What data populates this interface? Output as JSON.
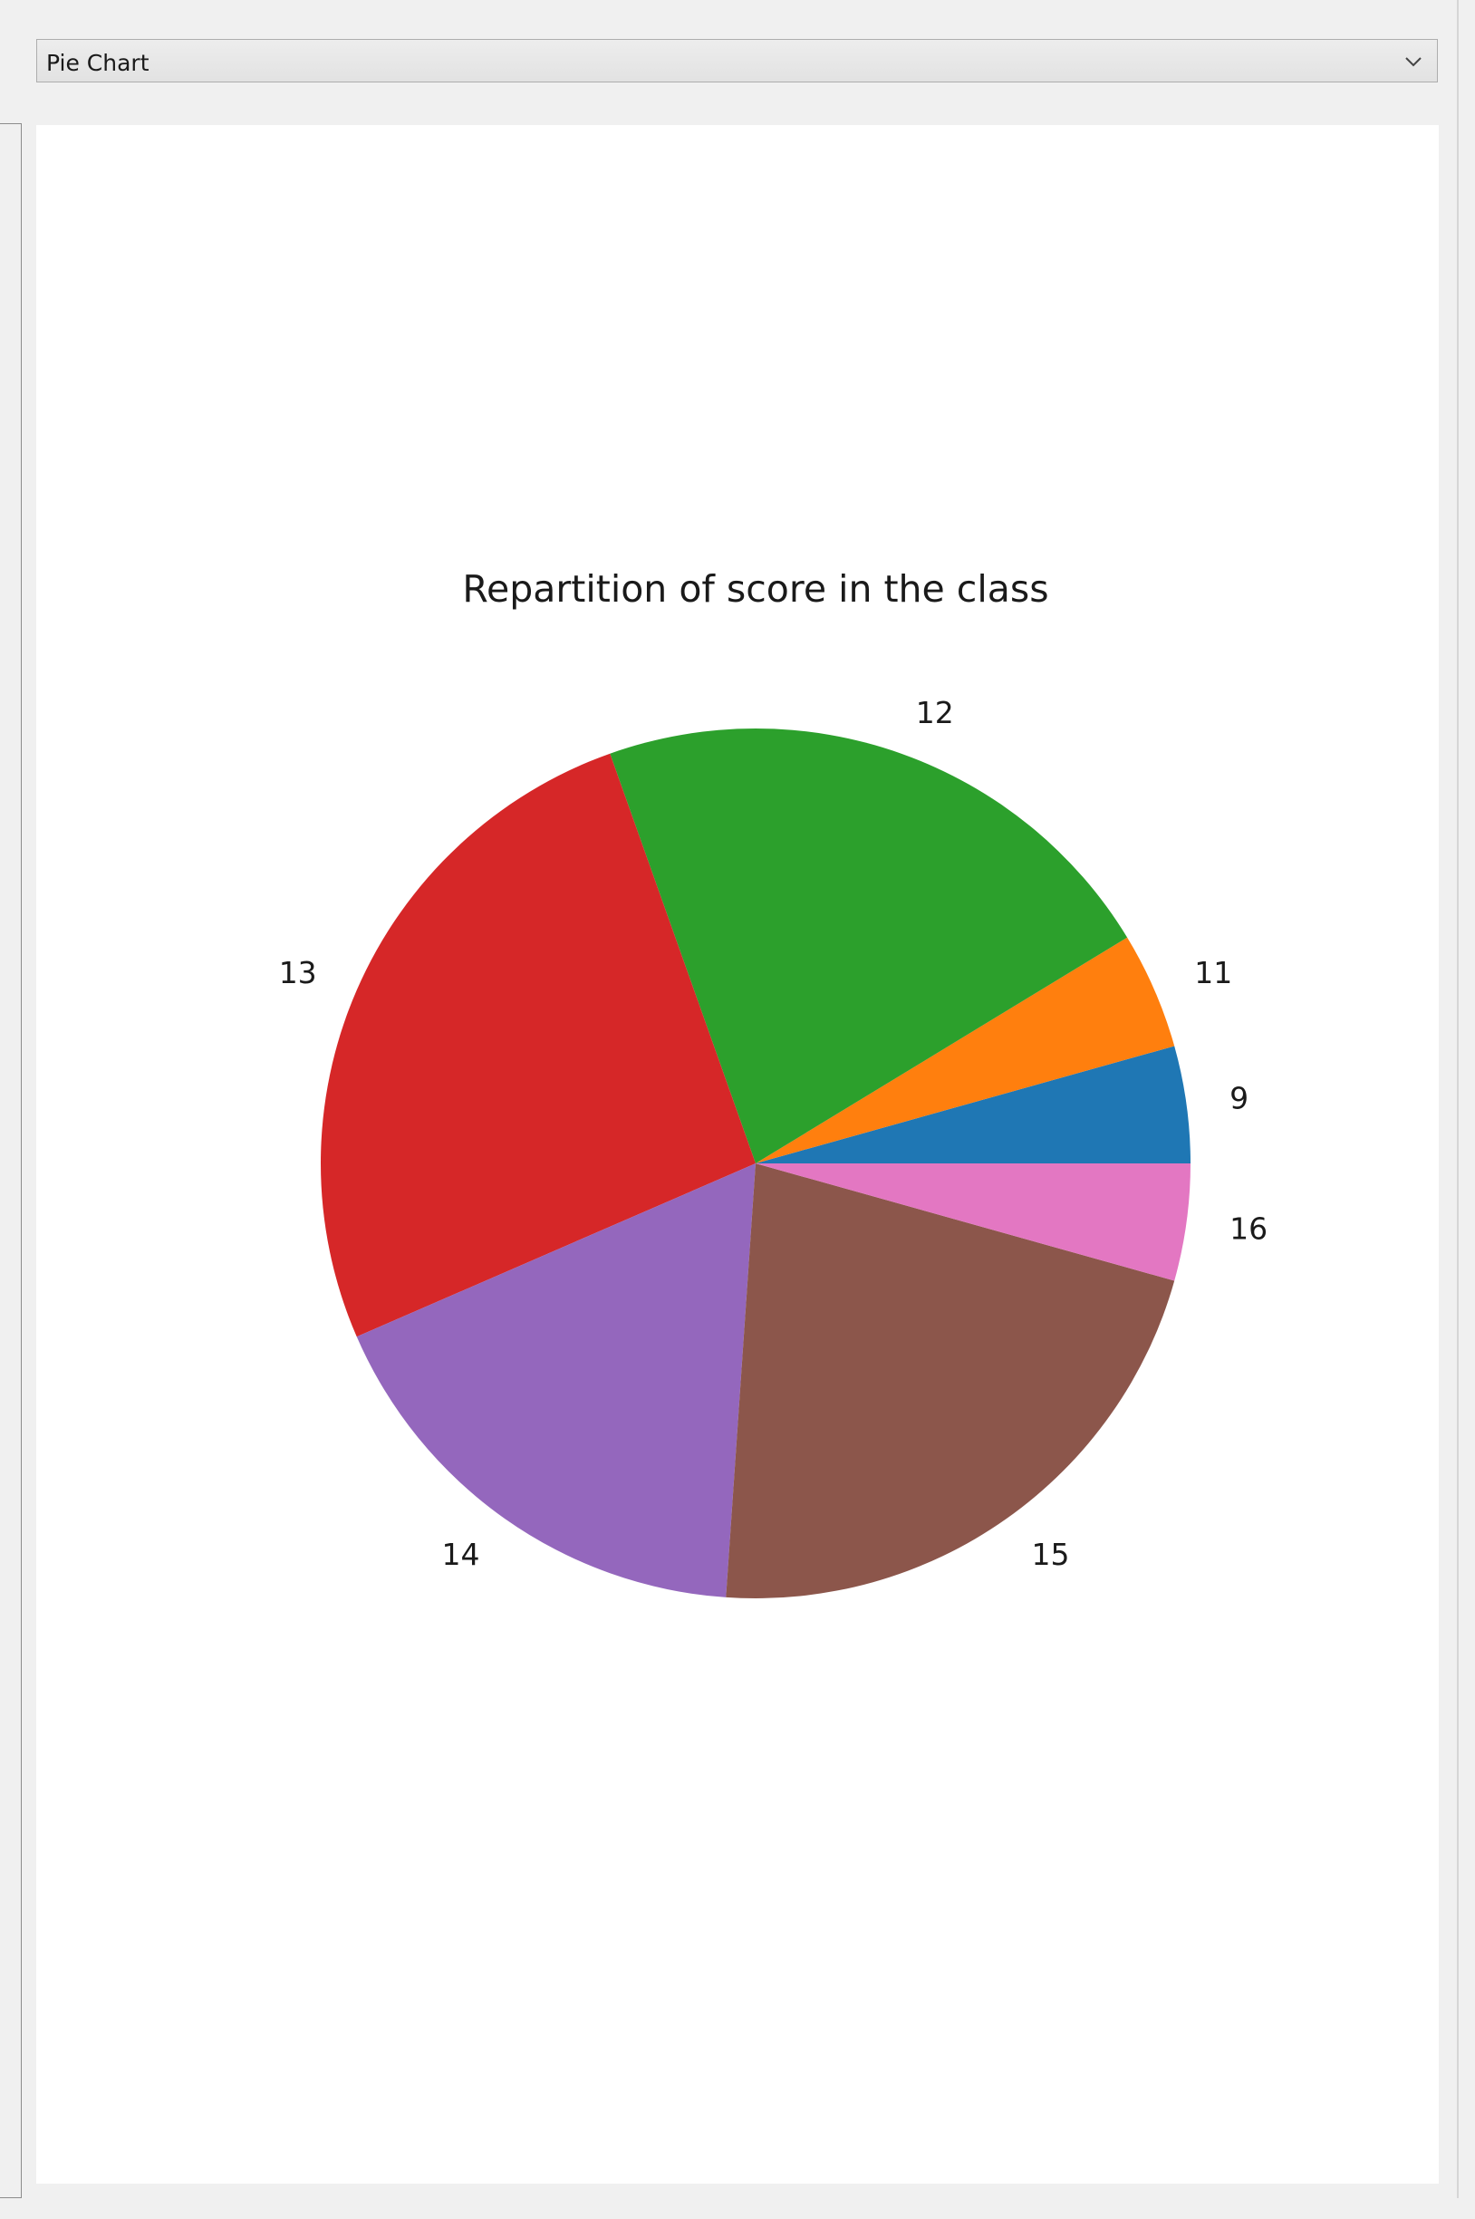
{
  "selector": {
    "value": "Pie Chart"
  },
  "chart_data": {
    "type": "pie",
    "title": "Repartition of score in the class",
    "categories": [
      "9",
      "11",
      "12",
      "13",
      "14",
      "15",
      "16"
    ],
    "values": [
      1,
      1,
      5,
      6,
      4,
      5,
      1
    ],
    "colors": [
      "#1f77b4",
      "#ff7f0e",
      "#2ca02c",
      "#d62728",
      "#9467bd",
      "#8c564b",
      "#e377c2"
    ],
    "start_angle": 0,
    "direction": "counterclockwise"
  }
}
